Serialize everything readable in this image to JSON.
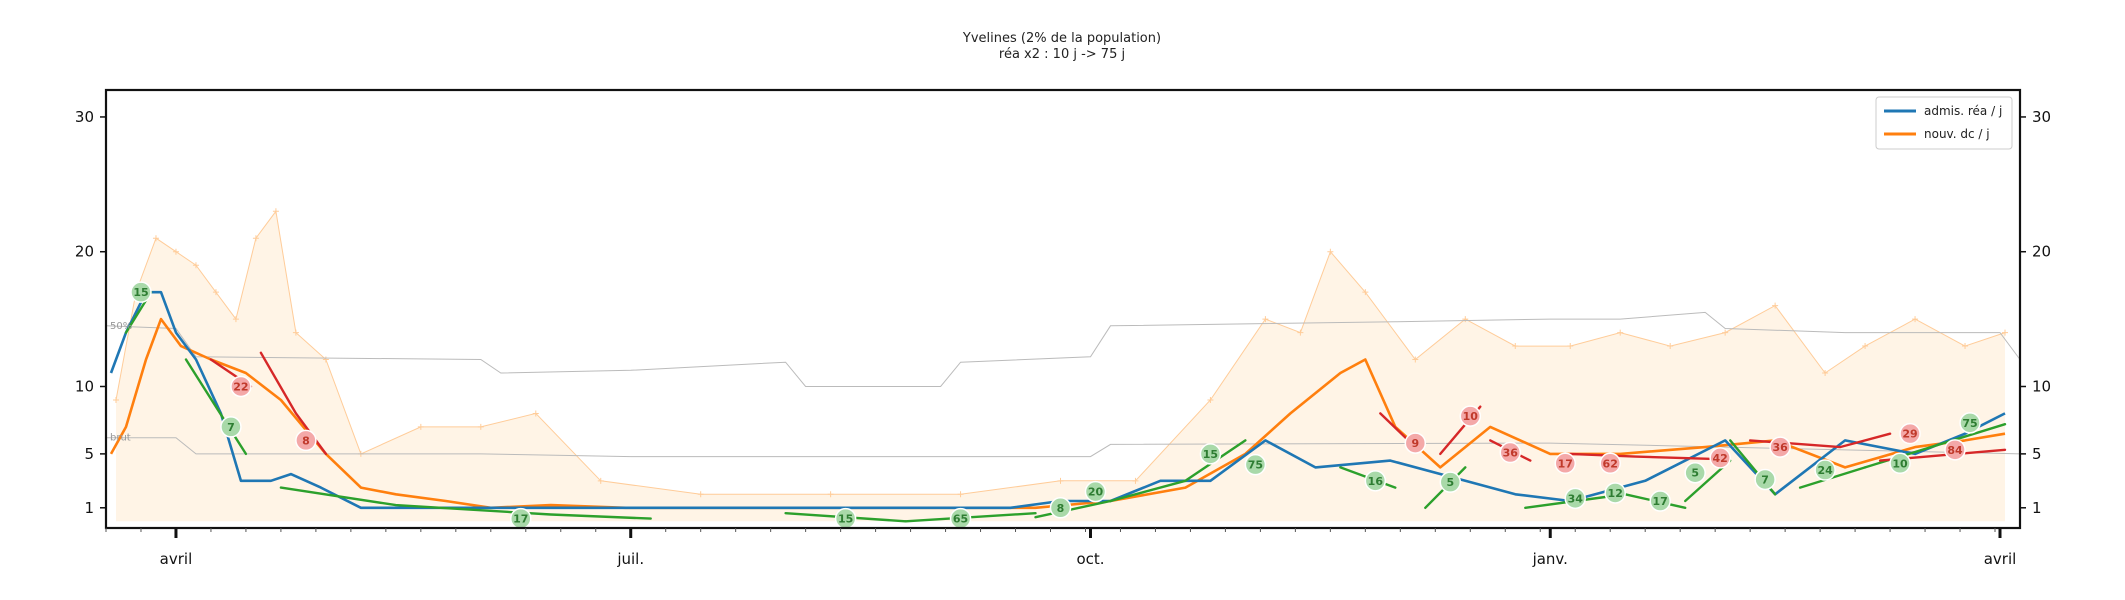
{
  "chart_data": {
    "type": "line",
    "title": "Yvelines (2% de la population)",
    "subtitle": "réa x2 : 10 j -> 75 j",
    "y_ticks": [
      1,
      5,
      10,
      20,
      30
    ],
    "ylim": [
      -0.5,
      32
    ],
    "x_range": [
      "2020-03-18",
      "2021-04-05"
    ],
    "x_ticks": [
      {
        "date": "2020-04-01",
        "label": "avril"
      },
      {
        "date": "2020-07-01",
        "label": "juil."
      },
      {
        "date": "2020-10-01",
        "label": "oct."
      },
      {
        "date": "2021-01-01",
        "label": "janv."
      },
      {
        "date": "2021-04-01",
        "label": "avril"
      }
    ],
    "reference_labels": [
      {
        "text": "50%",
        "y": 14.5
      },
      {
        "text": "brut",
        "y": 6.2
      }
    ],
    "grid": false,
    "legend_placement": "top-right",
    "colors": {
      "rea": "#1f77b4",
      "dc": "#ff7f0e",
      "fit_green": "#2ca02c",
      "fit_red": "#d62728",
      "raw": "#ffcc99",
      "raw_fill": "#fff4e6",
      "ref_line": "#bbbbbb"
    },
    "series": [
      {
        "name": "admis. réa / j",
        "color": "#1f77b4",
        "points": [
          [
            "2020-03-19",
            11
          ],
          [
            "2020-03-22",
            14
          ],
          [
            "2020-03-26",
            17
          ],
          [
            "2020-03-29",
            17
          ],
          [
            "2020-04-01",
            14
          ],
          [
            "2020-04-05",
            12
          ],
          [
            "2020-04-10",
            8
          ],
          [
            "2020-04-14",
            3
          ],
          [
            "2020-04-20",
            3
          ],
          [
            "2020-04-24",
            3.5
          ],
          [
            "2020-04-30",
            2.5
          ],
          [
            "2020-05-08",
            1
          ],
          [
            "2020-05-20",
            1
          ],
          [
            "2020-06-03",
            1
          ],
          [
            "2020-06-15",
            1
          ],
          [
            "2020-06-30",
            1
          ],
          [
            "2020-08-20",
            1
          ],
          [
            "2020-09-15",
            1
          ],
          [
            "2020-09-25",
            1.5
          ],
          [
            "2020-10-05",
            1.5
          ],
          [
            "2020-10-15",
            3
          ],
          [
            "2020-10-25",
            3
          ],
          [
            "2020-11-05",
            6
          ],
          [
            "2020-11-15",
            4
          ],
          [
            "2020-11-30",
            4.5
          ],
          [
            "2020-12-15",
            3
          ],
          [
            "2020-12-25",
            2
          ],
          [
            "2021-01-05",
            1.5
          ],
          [
            "2021-01-20",
            3
          ],
          [
            "2021-02-05",
            6
          ],
          [
            "2021-02-15",
            2
          ],
          [
            "2021-03-01",
            6
          ],
          [
            "2021-03-15",
            5
          ],
          [
            "2021-03-25",
            6.5
          ],
          [
            "2021-04-02",
            8
          ]
        ]
      },
      {
        "name": "nouv. dc / j",
        "color": "#ff7f0e",
        "points": [
          [
            "2020-03-19",
            5
          ],
          [
            "2020-03-22",
            7
          ],
          [
            "2020-03-26",
            12
          ],
          [
            "2020-03-29",
            15
          ],
          [
            "2020-04-02",
            13
          ],
          [
            "2020-04-08",
            12
          ],
          [
            "2020-04-15",
            11
          ],
          [
            "2020-04-22",
            9
          ],
          [
            "2020-05-01",
            5
          ],
          [
            "2020-05-08",
            2.5
          ],
          [
            "2020-05-15",
            2
          ],
          [
            "2020-05-25",
            1.5
          ],
          [
            "2020-06-03",
            1
          ],
          [
            "2020-06-15",
            1.2
          ],
          [
            "2020-06-30",
            1
          ],
          [
            "2020-07-12",
            1
          ],
          [
            "2020-08-05",
            1
          ],
          [
            "2020-08-20",
            1
          ],
          [
            "2020-09-20",
            1
          ],
          [
            "2020-10-05",
            1.5
          ],
          [
            "2020-10-20",
            2.5
          ],
          [
            "2020-11-01",
            5
          ],
          [
            "2020-11-10",
            8
          ],
          [
            "2020-11-20",
            11
          ],
          [
            "2020-11-25",
            12
          ],
          [
            "2020-12-01",
            7
          ],
          [
            "2020-12-10",
            4
          ],
          [
            "2020-12-20",
            7
          ],
          [
            "2021-01-01",
            5
          ],
          [
            "2021-01-15",
            5
          ],
          [
            "2021-02-01",
            5.5
          ],
          [
            "2021-02-15",
            6
          ],
          [
            "2021-03-01",
            4
          ],
          [
            "2021-03-15",
            5.5
          ],
          [
            "2021-03-25",
            6
          ],
          [
            "2021-04-02",
            6.5
          ]
        ]
      }
    ],
    "trend_annotations": [
      {
        "date": "2020-03-25",
        "y": 17,
        "label": "15",
        "color": "green"
      },
      {
        "date": "2020-04-12",
        "y": 7,
        "label": "7",
        "color": "green"
      },
      {
        "date": "2020-04-14",
        "y": 10,
        "label": "22",
        "color": "red"
      },
      {
        "date": "2020-04-27",
        "y": 6,
        "label": "8",
        "color": "red"
      },
      {
        "date": "2020-06-09",
        "y": 0.2,
        "label": "17",
        "color": "green"
      },
      {
        "date": "2020-08-13",
        "y": 0.2,
        "label": "15",
        "color": "green"
      },
      {
        "date": "2020-09-05",
        "y": 0.2,
        "label": "65",
        "color": "green"
      },
      {
        "date": "2020-09-25",
        "y": 1,
        "label": "8",
        "color": "green"
      },
      {
        "date": "2020-10-02",
        "y": 2.2,
        "label": "20",
        "color": "green"
      },
      {
        "date": "2020-10-25",
        "y": 5,
        "label": "15",
        "color": "green"
      },
      {
        "date": "2020-11-03",
        "y": 4.2,
        "label": "75",
        "color": "green"
      },
      {
        "date": "2020-11-27",
        "y": 3,
        "label": "16",
        "color": "green"
      },
      {
        "date": "2020-12-05",
        "y": 5.8,
        "label": "9",
        "color": "red"
      },
      {
        "date": "2020-12-12",
        "y": 2.9,
        "label": "5",
        "color": "green"
      },
      {
        "date": "2020-12-16",
        "y": 7.8,
        "label": "10",
        "color": "red"
      },
      {
        "date": "2020-12-24",
        "y": 5.1,
        "label": "36",
        "color": "red"
      },
      {
        "date": "2021-01-04",
        "y": 4.3,
        "label": "17",
        "color": "red"
      },
      {
        "date": "2021-01-06",
        "y": 1.7,
        "label": "34",
        "color": "green"
      },
      {
        "date": "2021-01-13",
        "y": 4.3,
        "label": "62",
        "color": "red"
      },
      {
        "date": "2021-01-14",
        "y": 2.1,
        "label": "12",
        "color": "green"
      },
      {
        "date": "2021-01-23",
        "y": 1.5,
        "label": "17",
        "color": "green"
      },
      {
        "date": "2021-01-30",
        "y": 3.6,
        "label": "5",
        "color": "green"
      },
      {
        "date": "2021-02-04",
        "y": 4.7,
        "label": "42",
        "color": "red"
      },
      {
        "date": "2021-02-13",
        "y": 3.1,
        "label": "7",
        "color": "green"
      },
      {
        "date": "2021-02-16",
        "y": 5.5,
        "label": "36",
        "color": "red"
      },
      {
        "date": "2021-02-25",
        "y": 3.8,
        "label": "24",
        "color": "green"
      },
      {
        "date": "2021-03-12",
        "y": 4.3,
        "label": "10",
        "color": "green"
      },
      {
        "date": "2021-03-14",
        "y": 6.5,
        "label": "29",
        "color": "red"
      },
      {
        "date": "2021-03-23",
        "y": 5.3,
        "label": "84",
        "color": "red"
      },
      {
        "date": "2021-03-26",
        "y": 7.3,
        "label": "75",
        "color": "green"
      }
    ],
    "fit_segments": [
      {
        "color": "green",
        "points": [
          [
            "2020-03-22",
            14
          ],
          [
            "2020-03-27",
            17
          ]
        ]
      },
      {
        "color": "green",
        "points": [
          [
            "2020-04-03",
            12
          ],
          [
            "2020-04-09",
            8.5
          ],
          [
            "2020-04-15",
            5
          ]
        ]
      },
      {
        "color": "red",
        "points": [
          [
            "2020-04-08",
            12
          ],
          [
            "2020-04-16",
            10
          ]
        ]
      },
      {
        "color": "red",
        "points": [
          [
            "2020-04-18",
            12.5
          ],
          [
            "2020-04-25",
            8
          ],
          [
            "2020-05-01",
            5
          ]
        ]
      },
      {
        "color": "green",
        "points": [
          [
            "2020-04-22",
            2.5
          ],
          [
            "2020-05-15",
            1.2
          ],
          [
            "2020-06-15",
            0.5
          ],
          [
            "2020-07-05",
            0.2
          ]
        ]
      },
      {
        "color": "green",
        "points": [
          [
            "2020-08-01",
            0.6
          ],
          [
            "2020-08-25",
            0
          ]
        ]
      },
      {
        "color": "green",
        "points": [
          [
            "2020-08-25",
            0
          ],
          [
            "2020-09-20",
            0.6
          ]
        ]
      },
      {
        "color": "green",
        "points": [
          [
            "2020-09-20",
            0.3
          ],
          [
            "2020-10-05",
            1.5
          ]
        ]
      },
      {
        "color": "green",
        "points": [
          [
            "2020-10-05",
            1.5
          ],
          [
            "2020-10-20",
            3
          ]
        ]
      },
      {
        "color": "green",
        "points": [
          [
            "2020-10-20",
            3
          ],
          [
            "2020-11-01",
            6
          ]
        ]
      },
      {
        "color": "green",
        "points": [
          [
            "2020-11-20",
            4
          ],
          [
            "2020-12-01",
            2.5
          ]
        ]
      },
      {
        "color": "red",
        "points": [
          [
            "2020-11-28",
            8
          ],
          [
            "2020-12-05",
            5.5
          ]
        ]
      },
      {
        "color": "green",
        "points": [
          [
            "2020-12-07",
            1
          ],
          [
            "2020-12-15",
            4
          ]
        ]
      },
      {
        "color": "red",
        "points": [
          [
            "2020-12-10",
            5
          ],
          [
            "2020-12-18",
            8.5
          ]
        ]
      },
      {
        "color": "red",
        "points": [
          [
            "2020-12-20",
            6
          ],
          [
            "2020-12-28",
            4.5
          ]
        ]
      },
      {
        "color": "green",
        "points": [
          [
            "2020-12-27",
            1
          ],
          [
            "2021-01-12",
            1.8
          ]
        ]
      },
      {
        "color": "red",
        "points": [
          [
            "2021-01-05",
            5
          ],
          [
            "2021-01-18",
            4.8
          ],
          [
            "2021-02-05",
            4.6
          ]
        ]
      },
      {
        "color": "green",
        "points": [
          [
            "2021-01-16",
            2
          ],
          [
            "2021-01-28",
            1
          ]
        ]
      },
      {
        "color": "green",
        "points": [
          [
            "2021-01-28",
            1.5
          ],
          [
            "2021-02-06",
            4.5
          ]
        ]
      },
      {
        "color": "green",
        "points": [
          [
            "2021-02-06",
            6
          ],
          [
            "2021-02-15",
            2
          ]
        ]
      },
      {
        "color": "red",
        "points": [
          [
            "2021-02-10",
            6
          ],
          [
            "2021-02-28",
            5.5
          ],
          [
            "2021-03-10",
            6.5
          ]
        ]
      },
      {
        "color": "green",
        "points": [
          [
            "2021-02-20",
            2.5
          ],
          [
            "2021-03-05",
            4
          ]
        ]
      },
      {
        "color": "green",
        "points": [
          [
            "2021-03-05",
            4
          ],
          [
            "2021-04-02",
            7.2
          ]
        ]
      },
      {
        "color": "red",
        "points": [
          [
            "2021-03-08",
            4.5
          ],
          [
            "2021-04-02",
            5.3
          ]
        ]
      }
    ],
    "raw_deaths_peaks": [
      [
        "2020-03-20",
        9
      ],
      [
        "2020-03-24",
        17
      ],
      [
        "2020-03-28",
        21
      ],
      [
        "2020-04-01",
        20
      ],
      [
        "2020-04-05",
        19
      ],
      [
        "2020-04-09",
        17
      ],
      [
        "2020-04-13",
        15
      ],
      [
        "2020-04-17",
        21
      ],
      [
        "2020-04-21",
        23
      ],
      [
        "2020-04-25",
        14
      ],
      [
        "2020-05-01",
        12
      ],
      [
        "2020-05-08",
        5
      ],
      [
        "2020-05-20",
        7
      ],
      [
        "2020-06-01",
        7
      ],
      [
        "2020-06-12",
        8
      ],
      [
        "2020-06-25",
        3
      ],
      [
        "2020-07-15",
        2
      ],
      [
        "2020-08-10",
        2
      ],
      [
        "2020-09-05",
        2
      ],
      [
        "2020-09-25",
        3
      ],
      [
        "2020-10-10",
        3
      ],
      [
        "2020-10-25",
        9
      ],
      [
        "2020-11-05",
        15
      ],
      [
        "2020-11-12",
        14
      ],
      [
        "2020-11-18",
        20
      ],
      [
        "2020-11-25",
        17
      ],
      [
        "2020-12-05",
        12
      ],
      [
        "2020-12-15",
        15
      ],
      [
        "2020-12-25",
        13
      ],
      [
        "2021-01-05",
        13
      ],
      [
        "2021-01-15",
        14
      ],
      [
        "2021-01-25",
        13
      ],
      [
        "2021-02-05",
        14
      ],
      [
        "2021-02-15",
        16
      ],
      [
        "2021-02-25",
        11
      ],
      [
        "2021-03-05",
        13
      ],
      [
        "2021-03-15",
        15
      ],
      [
        "2021-03-25",
        13
      ],
      [
        "2021-04-02",
        14
      ]
    ],
    "reference_50pct": [
      [
        "2020-03-18",
        14.5
      ],
      [
        "2020-04-01",
        14.3
      ],
      [
        "2020-04-05",
        12.2
      ],
      [
        "2020-06-01",
        12
      ],
      [
        "2020-06-05",
        11
      ],
      [
        "2020-07-01",
        11.2
      ],
      [
        "2020-08-01",
        11.8
      ],
      [
        "2020-08-05",
        10
      ],
      [
        "2020-09-01",
        10
      ],
      [
        "2020-09-05",
        11.8
      ],
      [
        "2020-10-01",
        12.2
      ],
      [
        "2020-10-05",
        14.5
      ],
      [
        "2020-12-01",
        14.8
      ],
      [
        "2021-01-01",
        15
      ],
      [
        "2021-01-15",
        15
      ],
      [
        "2021-02-01",
        15.5
      ],
      [
        "2021-02-05",
        14.3
      ],
      [
        "2021-03-01",
        14
      ],
      [
        "2021-04-01",
        14
      ],
      [
        "2021-04-05",
        12
      ]
    ],
    "reference_brut": [
      [
        "2020-03-18",
        6.2
      ],
      [
        "2020-04-01",
        6.2
      ],
      [
        "2020-04-05",
        5
      ],
      [
        "2020-06-01",
        5
      ],
      [
        "2020-07-01",
        4.8
      ],
      [
        "2020-10-01",
        4.8
      ],
      [
        "2020-10-05",
        5.7
      ],
      [
        "2021-01-01",
        5.8
      ],
      [
        "2021-02-05",
        5.5
      ],
      [
        "2021-04-05",
        5
      ]
    ]
  },
  "legend": {
    "items": [
      {
        "label": "admis. réa / j",
        "color": "#1f77b4"
      },
      {
        "label": "nouv. dc / j",
        "color": "#ff7f0e"
      }
    ]
  }
}
